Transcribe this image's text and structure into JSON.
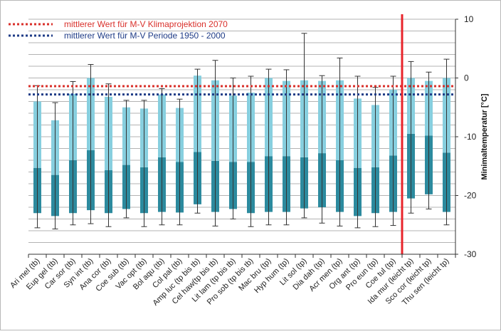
{
  "chart_data": {
    "type": "bar",
    "title": "",
    "xlabel": "",
    "ylabel": "Minimaltemperatur [°C]",
    "ylim": [
      -30,
      10
    ],
    "y_ticks": [
      10,
      0,
      -10,
      -20,
      -30
    ],
    "grid": true,
    "legend_position": "top-left",
    "categories": [
      "Ari mel (tb)",
      "Eup gel (tb)",
      "Car sor (tb)",
      "Syn int (tb)",
      "Ana cor (tb)",
      "Coe sub (tb)",
      "Vac opt (tb)",
      "Bol aqu (tb)",
      "Col pal (tb)",
      "Amp luc (tp bis tb)",
      "Cel haw(tp bis tb)",
      "Lit lam (tp bis tb)",
      "Pro sob (tp bis tb)",
      "Mac bru (tp)",
      "Hyp hum (tp)",
      "Lit sol (tp)",
      "Dia dah (tp)",
      "Acr men (tp)",
      "Org ant (tp)",
      "Pro eun (tp)",
      "Coe tul (tp)",
      "Ida mur (leicht tp)",
      "Sco cor (leicht tp)",
      "Thu sen (leicht tp)"
    ],
    "series": [
      {
        "stat": "lower_box",
        "color": "#2c8a9e",
        "bottom": [
          -23,
          -23.5,
          -23,
          -22.5,
          -23,
          -22.3,
          -23,
          -22.8,
          -22.9,
          -21.5,
          -22.8,
          -22.3,
          -23,
          -22.8,
          -22.8,
          -22.2,
          -22,
          -22.8,
          -23.5,
          -23,
          -22.8,
          -20.5,
          -19.8,
          -22.8
        ],
        "top": [
          -15.3,
          -16.5,
          -14,
          -12.3,
          -15.7,
          -14.8,
          -15.2,
          -13.5,
          -14.3,
          -12.6,
          -14.1,
          -14.3,
          -14.3,
          -13.3,
          -13.3,
          -13.5,
          -12.8,
          -14,
          -15.3,
          -15.2,
          -13.2,
          -9.5,
          -9.8,
          -12.7
        ]
      },
      {
        "stat": "upper_box",
        "color": "#87cfdf",
        "bottom": [
          -15.3,
          -16.5,
          -14,
          -12.3,
          -15.7,
          -14.8,
          -15.2,
          -13.5,
          -14.3,
          -12.6,
          -14.1,
          -14.3,
          -14.3,
          -13.3,
          -13.3,
          -13.5,
          -12.8,
          -14,
          -15.3,
          -15.2,
          -13.2,
          -9.5,
          -9.8,
          -12.7
        ],
        "top": [
          -4,
          -7.2,
          -2.7,
          0,
          -3.2,
          -5,
          -5.2,
          -2.8,
          -5.1,
          0.4,
          -0.4,
          -3,
          -2.5,
          0,
          -0.5,
          -0.4,
          -0.5,
          -0.4,
          -3.5,
          -4.6,
          -2,
          0,
          -0.5,
          0
        ]
      }
    ],
    "whiskers": {
      "low": [
        -25.5,
        -25.7,
        -25,
        -24.8,
        -25.3,
        -23.8,
        -25.3,
        -25,
        -25,
        -23,
        -25.2,
        -24,
        -25.3,
        -25,
        -25,
        -23.8,
        -24.7,
        -25.2,
        -25.5,
        -25.3,
        -25.1,
        -23,
        -22.3,
        -25
      ],
      "high": [
        -1.3,
        -4.2,
        -0.6,
        2.3,
        -1,
        -3.8,
        -3.8,
        -1.8,
        -3.6,
        1.5,
        3,
        0,
        0.3,
        1.5,
        1.4,
        7.6,
        0.4,
        3.4,
        0.3,
        -1.6,
        0.3,
        2.8,
        1,
        3.2
      ]
    },
    "reference_lines": [
      {
        "label": "mittlerer Wert für M-V Klimaprojektion 2070",
        "y": -1.4,
        "color": "#d9302b",
        "style": "dotted"
      },
      {
        "label": "mittlerer Wert für M-V Periode 1950 - 2000",
        "y": -2.8,
        "color": "#1f3c87",
        "style": "dotted"
      }
    ],
    "separator_after_index": 20,
    "separator_color": "#e8242b"
  }
}
